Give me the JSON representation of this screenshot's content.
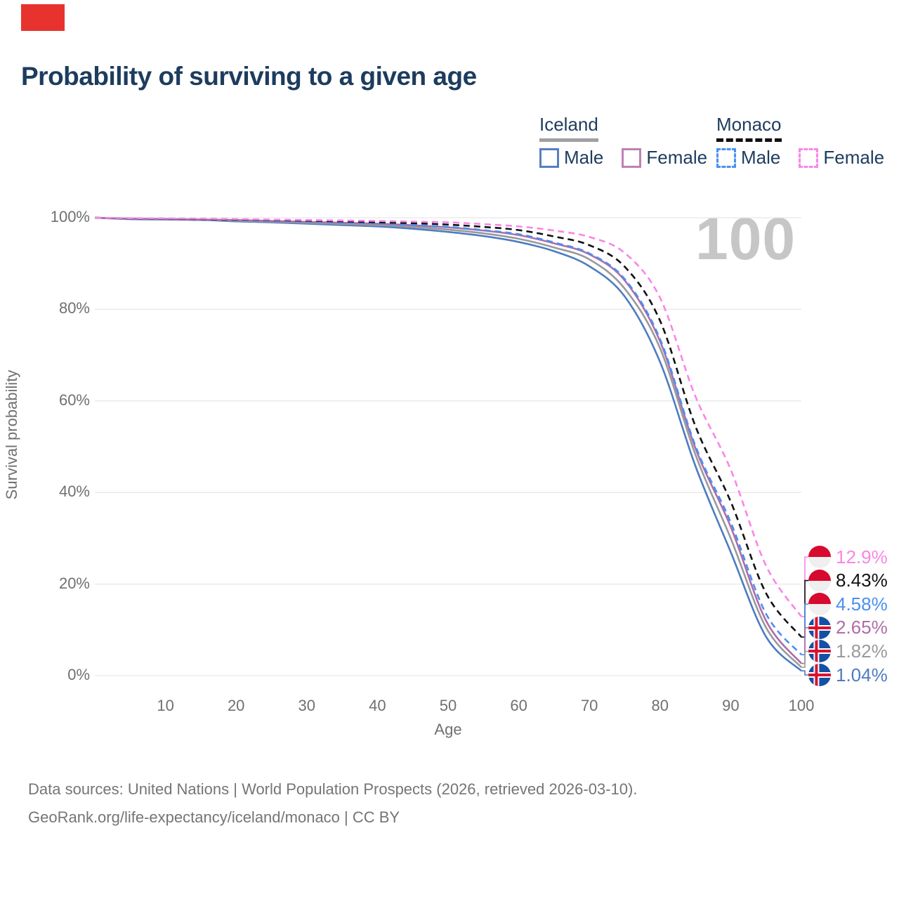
{
  "page": {
    "title": "Probability of surviving to a given age",
    "footer_line1": "Data sources: United Nations | World Population Prospects (2026, retrieved 2026-03-10).",
    "footer_line2": "GeoRank.org/life-expectancy/iceland/monaco | CC BY",
    "logo_color": "#e8322e",
    "title_color": "#1d3c5e"
  },
  "legend": {
    "groups": [
      {
        "label": "Iceland",
        "underline_style": "solid",
        "underline_color": "#a0a0a0",
        "items": [
          {
            "label": "Male",
            "color": "#5580c0",
            "dashed": false
          },
          {
            "label": "Female",
            "color": "#c080b5",
            "dashed": false
          }
        ]
      },
      {
        "label": "Monaco",
        "underline_style": "dashed",
        "underline_color": "#111111",
        "items": [
          {
            "label": "Male",
            "color": "#4a90f2",
            "dashed": true
          },
          {
            "label": "Female",
            "color": "#f986e5",
            "dashed": true
          }
        ]
      }
    ]
  },
  "chart_data": {
    "type": "line",
    "title": "Probability of surviving to a given age",
    "xlabel": "Age",
    "ylabel": "Survival probability",
    "watermark": "100",
    "xlim": [
      0,
      100
    ],
    "ylim": [
      0,
      100
    ],
    "grid": "horizontal",
    "x_ticks": [
      10,
      20,
      30,
      40,
      50,
      60,
      70,
      80,
      90,
      100
    ],
    "y_ticks": [
      0,
      20,
      40,
      60,
      80,
      100
    ],
    "y_tick_labels": [
      "0%",
      "20%",
      "40%",
      "60%",
      "80%",
      "100%"
    ],
    "x": [
      0,
      5,
      10,
      15,
      20,
      25,
      30,
      35,
      40,
      45,
      50,
      55,
      60,
      65,
      70,
      75,
      80,
      85,
      90,
      95,
      100
    ],
    "series": [
      {
        "name": "Monaco Female",
        "country": "monaco",
        "color": "#f986e5",
        "dashed": true,
        "end_label": "12.9%",
        "values": [
          100,
          99.9,
          99.85,
          99.8,
          99.7,
          99.6,
          99.5,
          99.4,
          99.3,
          99.15,
          99.0,
          98.6,
          98.1,
          97.2,
          95.8,
          92.3,
          82.5,
          61.0,
          45.0,
          24.0,
          12.9
        ]
      },
      {
        "name": "Monaco",
        "country": "monaco",
        "color": "#111111",
        "dashed": true,
        "end_label": "8.43%",
        "values": [
          100,
          99.85,
          99.8,
          99.7,
          99.6,
          99.5,
          99.35,
          99.2,
          99.0,
          98.8,
          98.5,
          98.0,
          97.3,
          95.9,
          94.0,
          89.3,
          77.5,
          54.5,
          38.0,
          18.0,
          8.43
        ]
      },
      {
        "name": "Monaco Male",
        "country": "monaco",
        "color": "#4a90f2",
        "dashed": true,
        "end_label": "4.58%",
        "values": [
          100,
          99.8,
          99.75,
          99.65,
          99.5,
          99.35,
          99.15,
          98.95,
          98.75,
          98.4,
          98.0,
          97.3,
          96.4,
          94.6,
          92.2,
          86.6,
          73.5,
          50.2,
          33.5,
          13.5,
          4.58
        ]
      },
      {
        "name": "Iceland Female",
        "country": "iceland",
        "color": "#b06ca8",
        "dashed": false,
        "end_label": "2.65%",
        "values": [
          100,
          99.8,
          99.7,
          99.6,
          99.5,
          99.3,
          99.1,
          98.9,
          98.7,
          98.35,
          97.9,
          97.2,
          96.2,
          94.4,
          92.0,
          86.3,
          73.0,
          49.7,
          32.5,
          12.0,
          2.65
        ]
      },
      {
        "name": "Iceland",
        "country": "iceland",
        "color": "#9a9a9a",
        "dashed": false,
        "end_label": "1.82%",
        "values": [
          100,
          99.75,
          99.65,
          99.55,
          99.35,
          99.15,
          98.9,
          98.65,
          98.4,
          98.0,
          97.4,
          96.6,
          95.4,
          93.5,
          90.9,
          84.5,
          71.5,
          48.3,
          30.0,
          10.5,
          1.82
        ]
      },
      {
        "name": "Iceland Male",
        "country": "iceland",
        "color": "#4d7cc0",
        "dashed": false,
        "end_label": "1.04%",
        "values": [
          100,
          99.7,
          99.6,
          99.5,
          99.2,
          99.0,
          98.7,
          98.4,
          98.1,
          97.6,
          96.9,
          96.0,
          94.7,
          92.7,
          89.4,
          82.8,
          68.5,
          45.8,
          27.0,
          8.5,
          1.04
        ]
      }
    ],
    "flag_colors": {
      "monaco_red": "#d60a2e",
      "monaco_white": "#efefef",
      "iceland_blue": "#1450a4",
      "iceland_red": "#d8132f",
      "iceland_white": "#ffffff"
    },
    "gridline_color": "#e7e7e7",
    "tick_color": "#707070"
  }
}
